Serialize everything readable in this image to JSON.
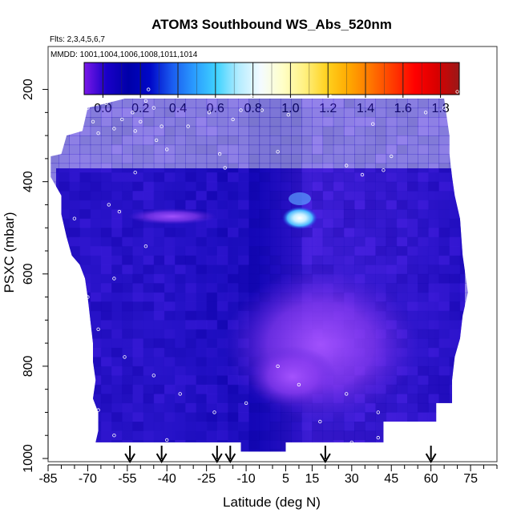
{
  "chart_data": {
    "type": "heatmap",
    "title": "ATOM3 Southbound WS_Abs_520nm",
    "flights_note": "Flts: 2,3,4,5,6,7",
    "dates_note": "MMDD: 1001,1004,1006,1008,1011,1014",
    "xlabel": "Latitude (deg N)",
    "ylabel": "PSXC (mbar)",
    "xlim": [
      -85,
      85
    ],
    "ylim": [
      1000,
      100
    ],
    "x_ticks": [
      "-85",
      "-70",
      "-55",
      "-40",
      "-25",
      "-10",
      "5",
      "15",
      "30",
      "45",
      "60",
      "75"
    ],
    "y_ticks": [
      "200",
      "400",
      "600",
      "800",
      "1000"
    ],
    "colorbar": {
      "range": [
        -0.1,
        1.9
      ],
      "tick_labels": [
        "0.0",
        "0.2",
        "0.4",
        "0.6",
        "0.8",
        "1.0",
        "1.2",
        "1.4",
        "1.6",
        "1.8"
      ],
      "colors": [
        "#7a18e8",
        "#1a00c8",
        "#0000a8",
        "#0008c8",
        "#1a5cf0",
        "#2a9cff",
        "#3fd2ff",
        "#b4ecff",
        "#f4fbff",
        "#ffffc8",
        "#fff080",
        "#ffd21e",
        "#ffa800",
        "#ff7400",
        "#ff3a00",
        "#ff0000",
        "#d80000",
        "#9a1818"
      ]
    },
    "colors": {
      "bg_low": "#1a08b8",
      "bg_mid": "#3a1cd8",
      "bg_high": "#7a36f0",
      "plume": "#9c4af8",
      "hot_core": "#ffffff",
      "warm": "#a8e4ff"
    },
    "airport_latitudes": [
      -54,
      -42,
      -21,
      -16,
      20,
      60
    ],
    "sample_points": [
      {
        "lat": -70,
        "p": 240
      },
      {
        "lat": -68,
        "p": 270
      },
      {
        "lat": -63,
        "p": 230
      },
      {
        "lat": -66,
        "p": 295
      },
      {
        "lat": -60,
        "p": 285
      },
      {
        "lat": -57,
        "p": 265
      },
      {
        "lat": -53,
        "p": 250
      },
      {
        "lat": -52,
        "p": 290
      },
      {
        "lat": -50,
        "p": 270
      },
      {
        "lat": -48,
        "p": 225
      },
      {
        "lat": -47,
        "p": 200
      },
      {
        "lat": -45,
        "p": 240
      },
      {
        "lat": -44,
        "p": 310
      },
      {
        "lat": -42,
        "p": 280
      },
      {
        "lat": -40,
        "p": 330
      },
      {
        "lat": -32,
        "p": 280
      },
      {
        "lat": -24,
        "p": 250
      },
      {
        "lat": -15,
        "p": 265
      },
      {
        "lat": -12,
        "p": 245
      },
      {
        "lat": -18,
        "p": 370
      },
      {
        "lat": -20,
        "p": 340
      },
      {
        "lat": -8,
        "p": 215
      },
      {
        "lat": -4,
        "p": 245
      },
      {
        "lat": 2,
        "p": 335
      },
      {
        "lat": 6,
        "p": 255
      },
      {
        "lat": 22,
        "p": 215
      },
      {
        "lat": 28,
        "p": 365
      },
      {
        "lat": 34,
        "p": 385
      },
      {
        "lat": 38,
        "p": 275
      },
      {
        "lat": 42,
        "p": 375
      },
      {
        "lat": 45,
        "p": 345
      },
      {
        "lat": 58,
        "p": 250
      },
      {
        "lat": 65,
        "p": 240
      },
      {
        "lat": 70,
        "p": 205
      },
      {
        "lat": -75,
        "p": 480
      },
      {
        "lat": -62,
        "p": 450
      },
      {
        "lat": -52,
        "p": 380
      },
      {
        "lat": -48,
        "p": 540
      },
      {
        "lat": -60,
        "p": 610
      },
      {
        "lat": -70,
        "p": 650
      },
      {
        "lat": -66,
        "p": 720
      },
      {
        "lat": -56,
        "p": 780
      },
      {
        "lat": -45,
        "p": 820
      },
      {
        "lat": -35,
        "p": 860
      },
      {
        "lat": -22,
        "p": 900
      },
      {
        "lat": -10,
        "p": 880
      },
      {
        "lat": 2,
        "p": 800
      },
      {
        "lat": 10,
        "p": 840
      },
      {
        "lat": 18,
        "p": 920
      },
      {
        "lat": 28,
        "p": 860
      },
      {
        "lat": 40,
        "p": 900
      },
      {
        "lat": 55,
        "p": 940
      },
      {
        "lat": 65,
        "p": 900
      },
      {
        "lat": 75,
        "p": 680
      },
      {
        "lat": 74,
        "p": 720
      },
      {
        "lat": -70,
        "p": 960
      },
      {
        "lat": -66,
        "p": 895
      },
      {
        "lat": -60,
        "p": 950
      },
      {
        "lat": -40,
        "p": 960
      },
      {
        "lat": 30,
        "p": 965
      },
      {
        "lat": 40,
        "p": 955
      },
      {
        "lat": -14,
        "p": 975
      },
      {
        "lat": -58,
        "p": 465
      }
    ]
  }
}
